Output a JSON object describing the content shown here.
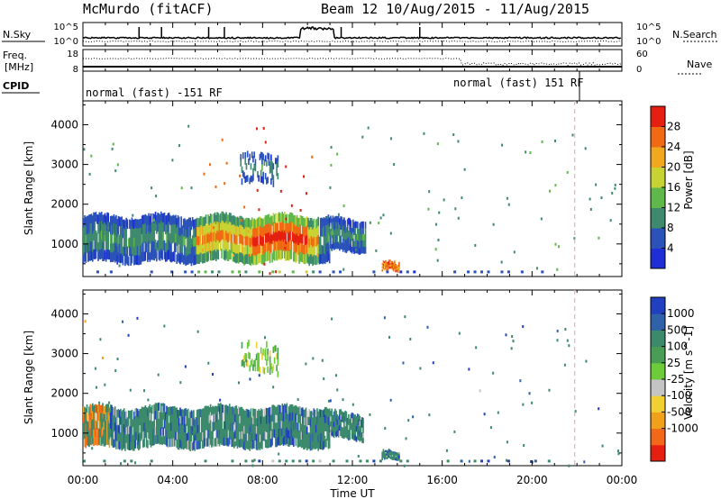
{
  "header": {
    "station": "McMurdo (fitACF)",
    "beam_dates": "Beam 12 10/Aug/2015 - 11/Aug/2015"
  },
  "noise_panel": {
    "left_label": "N.Sky",
    "left_ticks": [
      "10^5",
      "10^0"
    ],
    "right_label": "N.Search",
    "right_ticks": [
      "10^5",
      "10^0"
    ]
  },
  "freq_panel": {
    "left_label_1": "Freq.",
    "left_label_2": "[MHz]",
    "left_ticks": [
      "18",
      "8"
    ],
    "right_label": "Nave",
    "right_ticks": [
      "60",
      "0"
    ]
  },
  "cpid": {
    "label": "CPID",
    "segments": [
      {
        "start_hour": 0.0,
        "text": "normal (fast) -151 RF"
      },
      {
        "start_hour": 21.9,
        "text": "normal (fast) 151 RF"
      }
    ]
  },
  "time_axis": {
    "label": "Time UT",
    "ticks": [
      "00:00",
      "04:00",
      "08:00",
      "12:00",
      "16:00",
      "20:00",
      "00:00"
    ]
  },
  "chart_data": [
    {
      "type": "heatmap",
      "name": "power",
      "ylabel": "Slant Range [km]",
      "yticks": [
        "1000",
        "2000",
        "3000",
        "4000"
      ],
      "ylim": [
        180,
        4600
      ],
      "xlim_hours": [
        0,
        24
      ],
      "colorbar_label": "Power [dB]",
      "colorbar_ticks": [
        "4",
        "8",
        "12",
        "16",
        "20",
        "24",
        "28"
      ],
      "colorbar_colors": [
        "#1e2fd6",
        "#2a52b8",
        "#3f8a6e",
        "#60b84a",
        "#c8d233",
        "#f0a91f",
        "#f06a14",
        "#e62010"
      ],
      "approx_echo_regions_hours_km": [
        {
          "t_start": 0.0,
          "t_end": 11.0,
          "range_low": 550,
          "range_high": 1700
        },
        {
          "t_start": 11.0,
          "t_end": 12.6,
          "range_low": 800,
          "range_high": 1600
        },
        {
          "t_start": 13.3,
          "t_end": 14.1,
          "range_low": 300,
          "range_high": 500
        },
        {
          "t_start": 7.0,
          "t_end": 8.7,
          "range_low": 2500,
          "range_high": 3250
        }
      ]
    },
    {
      "type": "heatmap",
      "name": "velocity",
      "ylabel": "Slant Range [km]",
      "yticks": [
        "1000",
        "2000",
        "3000",
        "4000"
      ],
      "ylim": [
        180,
        4600
      ],
      "xlim_hours": [
        0,
        24
      ],
      "colorbar_label": "Velocity [m s^-1]",
      "colorbar_ticks": [
        "1000",
        "500",
        "100",
        "25",
        "-25",
        "-100",
        "-500",
        "-1000"
      ],
      "colorbar_colors": [
        "#2040c0",
        "#2f62a8",
        "#3c8a6c",
        "#4a9d55",
        "#6ccc3a",
        "#c4c4c4",
        "#f0d033",
        "#f0a01a",
        "#f06818",
        "#e62010"
      ],
      "approx_echo_regions_hours_km": [
        {
          "t_start": 0.0,
          "t_end": 11.0,
          "range_low": 650,
          "range_high": 1650
        },
        {
          "t_start": 11.0,
          "t_end": 12.5,
          "range_low": 850,
          "range_high": 1500
        },
        {
          "t_start": 13.3,
          "t_end": 14.1,
          "range_low": 300,
          "range_high": 500
        },
        {
          "t_start": 7.0,
          "t_end": 8.7,
          "range_low": 2500,
          "range_high": 3250
        }
      ]
    }
  ]
}
